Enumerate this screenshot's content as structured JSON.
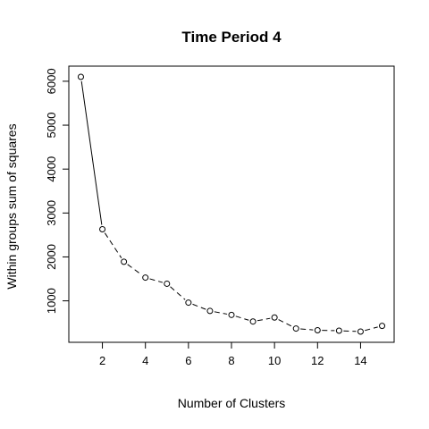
{
  "chart_data": {
    "type": "line",
    "title": "Time Period 4",
    "xlabel": "Number of Clusters",
    "ylabel": "Within groups sum of squares",
    "x": [
      1,
      2,
      3,
      4,
      5,
      6,
      7,
      8,
      9,
      10,
      11,
      12,
      13,
      14,
      15
    ],
    "values": [
      6100,
      2630,
      1890,
      1530,
      1390,
      960,
      770,
      680,
      530,
      620,
      370,
      330,
      320,
      300,
      430
    ],
    "xlim": [
      0.44,
      15.56
    ],
    "ylim": [
      56,
      6344
    ],
    "xticks": [
      2,
      4,
      6,
      8,
      10,
      12,
      14
    ],
    "yticks": [
      1000,
      2000,
      3000,
      4000,
      5000,
      6000
    ],
    "grid": false,
    "markers": "open-circle",
    "line_style": "dashed"
  }
}
